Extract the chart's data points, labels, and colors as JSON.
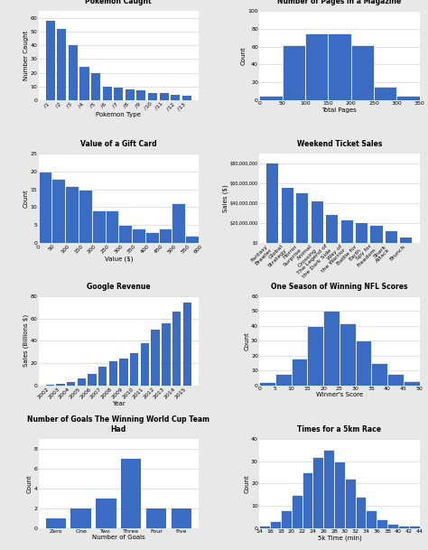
{
  "chart1": {
    "title": "Pokemon Caught",
    "xlabel": "Pokemon Type",
    "ylabel": "Number Caught",
    "values": [
      58,
      52,
      40,
      24,
      20,
      10,
      9,
      8,
      7,
      5,
      5,
      4,
      3
    ],
    "ylim": [
      0,
      65
    ]
  },
  "chart2": {
    "title": "Number of Pages in a Magazine",
    "xlabel": "Total Pages",
    "ylabel": "Count",
    "bins": [
      0,
      50,
      100,
      150,
      200,
      250,
      300,
      350
    ],
    "values": [
      5,
      62,
      75,
      75,
      62,
      15,
      5
    ],
    "ylim": [
      0,
      100
    ]
  },
  "chart3": {
    "title": "Value of a Gift Card",
    "xlabel": "Value ($)",
    "ylabel": "Count",
    "bins": [
      0,
      50,
      100,
      150,
      200,
      250,
      300,
      350,
      400,
      450,
      500,
      550,
      600
    ],
    "values": [
      20,
      18,
      16,
      15,
      9,
      9,
      5,
      4,
      3,
      4,
      11,
      2
    ],
    "ylim": [
      0,
      25
    ]
  },
  "chart4": {
    "title": "Weekend Ticket Sales",
    "xlabel": "",
    "ylabel": "Sales ($)",
    "categories": [
      "Fantasy\nBrawler",
      "Global\nStrategy",
      "Horror\nSurprise",
      "Animal\nCrossing",
      "The Legend of\nthe Dark Side",
      "Way of\nthe Warrior",
      "Battle for\nEarth",
      "Spy for\nFreedom",
      "Shark\nAttack",
      "Brunch"
    ],
    "values": [
      80000000,
      55000000,
      50000000,
      42000000,
      28000000,
      23000000,
      20000000,
      17000000,
      12000000,
      5000000
    ],
    "yticks": [
      0,
      20000000,
      40000000,
      60000000,
      80000000
    ],
    "ylim": [
      0,
      90000000
    ]
  },
  "chart5": {
    "title": "Google Revenue",
    "xlabel": "Year",
    "ylabel": "Sales (Billions $)",
    "categories": [
      "2002",
      "2003",
      "2004",
      "2005",
      "2006",
      "2007",
      "2008",
      "2009",
      "2010",
      "2011",
      "2012",
      "2013",
      "2014",
      "2015"
    ],
    "values": [
      0.5,
      1.5,
      3.2,
      6.1,
      10.6,
      16.6,
      21.8,
      23.7,
      29.3,
      37.9,
      50.2,
      55.5,
      66.0,
      74.0
    ],
    "ylim": [
      0,
      80
    ]
  },
  "chart6": {
    "title": "One Season of Winning NFL Scores",
    "xlabel": "Winner's Score",
    "ylabel": "Count",
    "bins": [
      0,
      5,
      10,
      15,
      20,
      25,
      30,
      35,
      40,
      45,
      50
    ],
    "values": [
      2,
      8,
      18,
      40,
      50,
      42,
      30,
      15,
      8,
      3
    ],
    "ylim": [
      0,
      60
    ]
  },
  "chart7": {
    "title": "Number of Goals The Winning World Cup Team\nHad",
    "xlabel": "Number of Goals",
    "ylabel": "Count",
    "categories": [
      "Zero",
      "One",
      "Two",
      "Three",
      "Four",
      "Five"
    ],
    "values": [
      1,
      2,
      3,
      7,
      2,
      2
    ],
    "ylim": [
      0,
      9
    ]
  },
  "chart8": {
    "title": "Times for a 5km Race",
    "xlabel": "5k Time (min)",
    "ylabel": "Count",
    "bins": [
      14,
      16,
      18,
      20,
      22,
      24,
      26,
      28,
      30,
      32,
      34,
      36,
      38,
      40,
      42,
      44
    ],
    "values": [
      1,
      3,
      8,
      15,
      25,
      32,
      35,
      30,
      22,
      14,
      8,
      4,
      2,
      1,
      1
    ],
    "ylim": [
      0,
      40
    ]
  },
  "bar_color": "#3a6cc4",
  "bg_color": "#e8e8e8",
  "panel_bg": "#ffffff",
  "grid_color": "#cccccc"
}
